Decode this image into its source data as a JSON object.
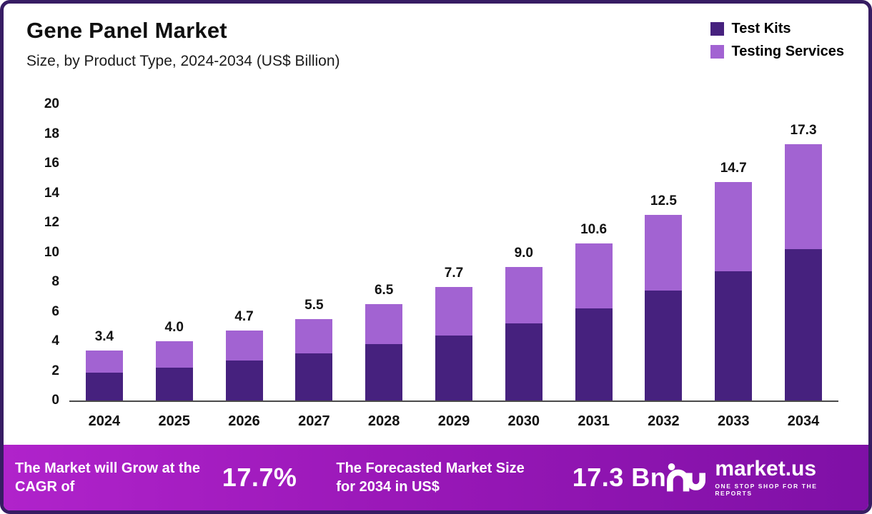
{
  "header": {
    "title": "Gene Panel Market",
    "subtitle": "Size, by Product Type, 2024-2034 (US$ Billion)"
  },
  "legend": [
    {
      "label": "Test Kits",
      "color": "#46217e"
    },
    {
      "label": "Testing Services",
      "color": "#a263d2"
    }
  ],
  "chart_data": {
    "type": "bar",
    "stacked": true,
    "title": "Gene Panel Market",
    "subtitle": "Size, by Product Type, 2024-2034 (US$ Billion)",
    "categories": [
      "2024",
      "2025",
      "2026",
      "2027",
      "2028",
      "2029",
      "2030",
      "2031",
      "2032",
      "2033",
      "2034"
    ],
    "series": [
      {
        "name": "Test Kits",
        "color": "#46217e",
        "values": [
          1.9,
          2.2,
          2.7,
          3.2,
          3.8,
          4.4,
          5.2,
          6.2,
          7.4,
          8.7,
          10.2
        ]
      },
      {
        "name": "Testing Services",
        "color": "#a263d2",
        "values": [
          1.5,
          1.8,
          2.0,
          2.3,
          2.7,
          3.3,
          3.8,
          4.4,
          5.1,
          6.0,
          7.1
        ]
      }
    ],
    "totals": [
      3.4,
      4.0,
      4.7,
      5.5,
      6.5,
      7.7,
      9.0,
      10.6,
      12.5,
      14.7,
      17.3
    ],
    "ylabel": "",
    "xlabel": "",
    "ylim": [
      0,
      20
    ],
    "yticks": [
      0,
      2,
      4,
      6,
      8,
      10,
      12,
      14,
      16,
      18,
      20
    ],
    "grid": false,
    "legend_position": "top-right"
  },
  "footer": {
    "cagr_text": "The Market will Grow at the CAGR of",
    "cagr_value": "17.7%",
    "forecast_text": "The Forecasted Market Size for 2034 in US$",
    "forecast_value": "17.3 Bn",
    "brand": "market.us",
    "brand_tagline": "One Stop Shop For The Reports"
  }
}
